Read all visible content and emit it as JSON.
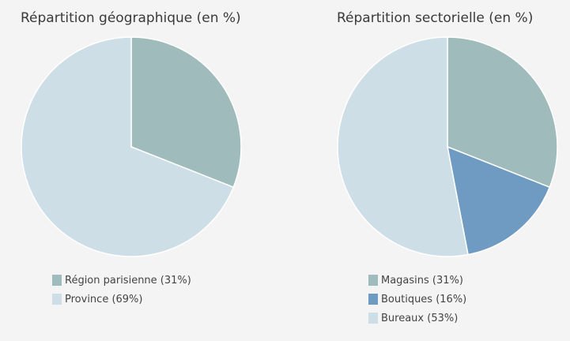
{
  "chart_data": [
    {
      "type": "pie",
      "title": "Répartition géographique (en %)",
      "slices": [
        {
          "label": "Région parisienne (31%)",
          "value": 31,
          "color": "#9fbbbb"
        },
        {
          "label": "Province (69%)",
          "value": 69,
          "color": "#cddee7"
        }
      ],
      "legend_position": "bottom"
    },
    {
      "type": "pie",
      "title": "Répartition sectorielle (en %)",
      "slices": [
        {
          "label": "Magasins (31%)",
          "value": 31,
          "color": "#9fbbbb"
        },
        {
          "label": "Boutiques (16%)",
          "value": 16,
          "color": "#6f9bc2"
        },
        {
          "label": "Bureaux (53%)",
          "value": 53,
          "color": "#cddee7"
        }
      ],
      "legend_position": "bottom"
    }
  ]
}
